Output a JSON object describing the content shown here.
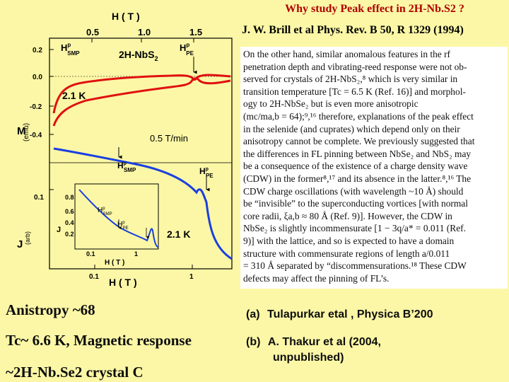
{
  "slide": {
    "title": "Why study Peak effect in 2H-Nb.S2 ?",
    "citation": "J. W. Brill et al Phys. Rev. B 50, R 1329 (1994)"
  },
  "figure": {
    "top_axis_title": "H ( T )",
    "top_ticks": [
      "0.5",
      "1.0",
      "1.5"
    ],
    "upper_yticks": [
      "0.2",
      "0.0",
      "-0.2",
      "-0.4"
    ],
    "upper_ylabel": "M",
    "upper_unit": "(emu)",
    "lower_yticks": [
      "0.1"
    ],
    "lower_ylabel": "J",
    "lower_unit": "(arb)",
    "bottom_ticks": [
      "0.1",
      "1"
    ],
    "bottom_axis_title": "H ( T )",
    "labels": {
      "hp_smp_upper": "H",
      "hp_smp_upper_sub": "SMP",
      "hp_pe_upper": "H",
      "hp_pe_upper_sub": "PE",
      "sample": "2H-NbS",
      "sample_sub": "2",
      "temp_upper": "2.1 K",
      "rate": "0.5 T/min",
      "hp_smp_lower": "H",
      "hp_smp_lower_sub": "SMP",
      "hp_pe_lower": "H",
      "hp_pe_lower_sub": "PE",
      "temp_lower": "2.1 K",
      "sup_p": "p"
    },
    "inset": {
      "yticks": [
        "0.8",
        "0.6",
        "0.4",
        "0.2"
      ],
      "xticks": [
        "0.1",
        "1"
      ],
      "xlabel": "H ( T )",
      "ylabel": "J",
      "hp_smp": "H",
      "hp_smp_sub": "SMP",
      "hp_pe": "H",
      "hp_pe_sub": "PE"
    },
    "colors": {
      "magnetization": "#e01010",
      "current": "#1a3fe0",
      "inset_curve": "#1a3fe0"
    }
  },
  "excerpt": {
    "lines": [
      "On the other hand, similar anomalous features in the rf",
      "penetration depth and vibrating-reed response were not ob-",
      "served for crystals of 2H-NbS₂,⁸ which is very similar in",
      "transition temperature [Tc = 6.5 K (Ref. 16)] and morphol-",
      "ogy to 2H-NbSe₂ but is even more anisotropic",
      "(mc/ma,b = 64);⁹,¹⁶ therefore, explanations of the peak effect",
      "in the selenide (and cuprates) which depend only on their",
      "anisotropy cannot be complete. We previously suggested that",
      "the differences in FL pinning between NbSe₂ and NbS₂ may",
      "be a consequence of the existence of a charge density wave",
      "(CDW) in the former⁸,¹⁷ and its absence in the latter.⁸,¹⁶ The",
      "CDW charge oscillations (with wavelength ~10 Å) should",
      "be “invisible” to the superconducting vortices [with normal",
      "core radii, ξa,b ≈ 80 Å (Ref. 9)]. However, the CDW in",
      "NbSe₂ is slightly incommensurate [1 − 3q/a* = 0.011 (Ref.",
      "9)] with the lattice, and so is expected to have a domain",
      "structure with commensurate regions of length a/0.011",
      "= 310 Å separated by “discommensurations.¹⁸ These CDW",
      "defects may affect the pinning of FL’s."
    ]
  },
  "notes": {
    "left": [
      "Anistropy ~68",
      "Tc~ 6.6 K, Magnetic response",
      "~2H-Nb.Se2 crystal C"
    ],
    "right": [
      {
        "marker": "(a)",
        "text": "Tulapurkar etal , Physica B’200"
      },
      {
        "marker": "(b)",
        "text": "A. Thakur et al (2004,",
        "text2": "unpublished)"
      }
    ]
  }
}
